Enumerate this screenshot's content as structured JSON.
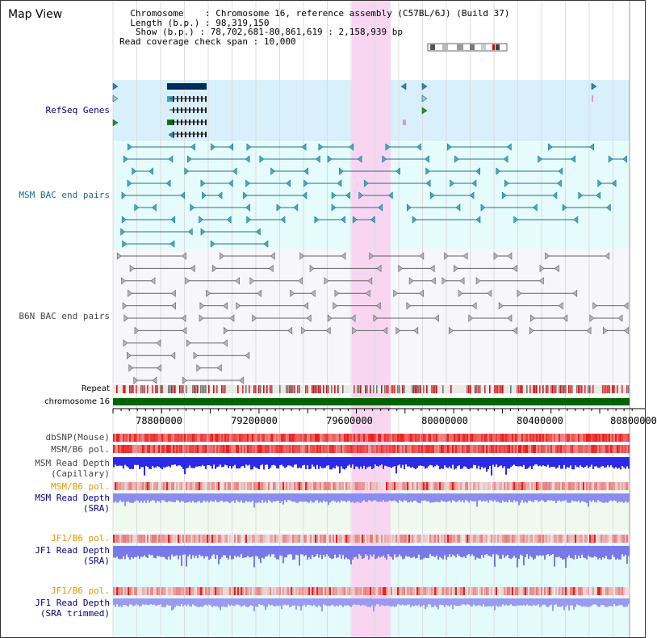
{
  "page": {
    "title": "Map View"
  },
  "info": {
    "chromosome_label": "Chromosome",
    "chromosome_value": "Chromosome 16, reference assembly (C57BL/6J) (Build 37)",
    "length_label": "Length (b.p.)",
    "length_value": "98,319,150",
    "show_label": "Show (b.p.)",
    "show_value": "78,702,681-80,861,619 : 2,158,939 bp",
    "span_label": "Read coverage check span",
    "span_value": "10,000"
  },
  "tracks": {
    "refseq": "RefSeq Genes",
    "msm_bac": "MSM BAC end pairs",
    "b6n_bac": "B6N BAC end pairs",
    "repeat": "Repeat",
    "chromosome": "chromosome 16",
    "dbsnp": "dbSNP(Mouse)",
    "msm_b6_pol": "MSM/B6 pol.",
    "msm_depth_cap_1": "MSM Read Depth",
    "msm_depth_cap_2": "(Capillary)",
    "msm_b6_pol_sra": "MSM/B6 pol.",
    "msm_depth_sra_1": "MSM Read Depth",
    "msm_depth_sra_2": "(SRA)",
    "jf1_b6_pol": "JF1/B6 pol.",
    "jf1_depth_sra_1": "JF1 Read Depth",
    "jf1_depth_sra_2": "(SRA)",
    "jf1_b6_pol_trim": "JF1/B6 pol.",
    "jf1_depth_trim_1": "JF1 Read Depth",
    "jf1_depth_trim_2": "(SRA trimmed)"
  },
  "axis": {
    "ticks": [
      "78800000",
      "79200000",
      "79600000",
      "80000000",
      "80400000",
      "80800000"
    ]
  },
  "colors": {
    "refseq_bg": "#d8f0fb",
    "msm_bac_bg": "#e6fbfb",
    "b6n_bac_bg": "#f6f6fb",
    "highlight": "#f8d6f2",
    "msm_line": "#20708a",
    "b6n_line": "#606060",
    "chromosome": "#006400",
    "depth": "#2020e6",
    "label_navy": "#000080",
    "label_teal": "#1a6a8a",
    "label_orange": "#e69500",
    "label_gray": "#444444"
  }
}
